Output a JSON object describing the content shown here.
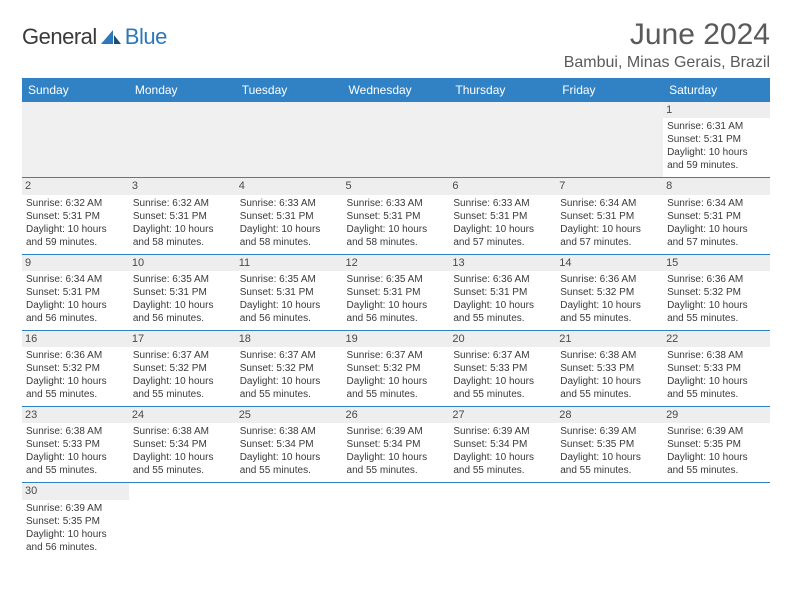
{
  "logo": {
    "general": "General",
    "blue": "Blue"
  },
  "title": "June 2024",
  "location": "Bambui, Minas Gerais, Brazil",
  "colors": {
    "header_bg": "#3082c5",
    "header_text": "#ffffff",
    "daynum_bg": "#eeeeee",
    "row_border": "#3082c5",
    "text": "#3a3a3a",
    "logo_gray": "#3a3a3a",
    "logo_blue": "#2e77b8"
  },
  "day_headers": [
    "Sunday",
    "Monday",
    "Tuesday",
    "Wednesday",
    "Thursday",
    "Friday",
    "Saturday"
  ],
  "weeks": [
    [
      null,
      null,
      null,
      null,
      null,
      null,
      {
        "n": "1",
        "sr": "6:31 AM",
        "ss": "5:31 PM",
        "dl": "10 hours and 59 minutes."
      }
    ],
    [
      {
        "n": "2",
        "sr": "6:32 AM",
        "ss": "5:31 PM",
        "dl": "10 hours and 59 minutes."
      },
      {
        "n": "3",
        "sr": "6:32 AM",
        "ss": "5:31 PM",
        "dl": "10 hours and 58 minutes."
      },
      {
        "n": "4",
        "sr": "6:33 AM",
        "ss": "5:31 PM",
        "dl": "10 hours and 58 minutes."
      },
      {
        "n": "5",
        "sr": "6:33 AM",
        "ss": "5:31 PM",
        "dl": "10 hours and 58 minutes."
      },
      {
        "n": "6",
        "sr": "6:33 AM",
        "ss": "5:31 PM",
        "dl": "10 hours and 57 minutes."
      },
      {
        "n": "7",
        "sr": "6:34 AM",
        "ss": "5:31 PM",
        "dl": "10 hours and 57 minutes."
      },
      {
        "n": "8",
        "sr": "6:34 AM",
        "ss": "5:31 PM",
        "dl": "10 hours and 57 minutes."
      }
    ],
    [
      {
        "n": "9",
        "sr": "6:34 AM",
        "ss": "5:31 PM",
        "dl": "10 hours and 56 minutes."
      },
      {
        "n": "10",
        "sr": "6:35 AM",
        "ss": "5:31 PM",
        "dl": "10 hours and 56 minutes."
      },
      {
        "n": "11",
        "sr": "6:35 AM",
        "ss": "5:31 PM",
        "dl": "10 hours and 56 minutes."
      },
      {
        "n": "12",
        "sr": "6:35 AM",
        "ss": "5:31 PM",
        "dl": "10 hours and 56 minutes."
      },
      {
        "n": "13",
        "sr": "6:36 AM",
        "ss": "5:31 PM",
        "dl": "10 hours and 55 minutes."
      },
      {
        "n": "14",
        "sr": "6:36 AM",
        "ss": "5:32 PM",
        "dl": "10 hours and 55 minutes."
      },
      {
        "n": "15",
        "sr": "6:36 AM",
        "ss": "5:32 PM",
        "dl": "10 hours and 55 minutes."
      }
    ],
    [
      {
        "n": "16",
        "sr": "6:36 AM",
        "ss": "5:32 PM",
        "dl": "10 hours and 55 minutes."
      },
      {
        "n": "17",
        "sr": "6:37 AM",
        "ss": "5:32 PM",
        "dl": "10 hours and 55 minutes."
      },
      {
        "n": "18",
        "sr": "6:37 AM",
        "ss": "5:32 PM",
        "dl": "10 hours and 55 minutes."
      },
      {
        "n": "19",
        "sr": "6:37 AM",
        "ss": "5:32 PM",
        "dl": "10 hours and 55 minutes."
      },
      {
        "n": "20",
        "sr": "6:37 AM",
        "ss": "5:33 PM",
        "dl": "10 hours and 55 minutes."
      },
      {
        "n": "21",
        "sr": "6:38 AM",
        "ss": "5:33 PM",
        "dl": "10 hours and 55 minutes."
      },
      {
        "n": "22",
        "sr": "6:38 AM",
        "ss": "5:33 PM",
        "dl": "10 hours and 55 minutes."
      }
    ],
    [
      {
        "n": "23",
        "sr": "6:38 AM",
        "ss": "5:33 PM",
        "dl": "10 hours and 55 minutes."
      },
      {
        "n": "24",
        "sr": "6:38 AM",
        "ss": "5:34 PM",
        "dl": "10 hours and 55 minutes."
      },
      {
        "n": "25",
        "sr": "6:38 AM",
        "ss": "5:34 PM",
        "dl": "10 hours and 55 minutes."
      },
      {
        "n": "26",
        "sr": "6:39 AM",
        "ss": "5:34 PM",
        "dl": "10 hours and 55 minutes."
      },
      {
        "n": "27",
        "sr": "6:39 AM",
        "ss": "5:34 PM",
        "dl": "10 hours and 55 minutes."
      },
      {
        "n": "28",
        "sr": "6:39 AM",
        "ss": "5:35 PM",
        "dl": "10 hours and 55 minutes."
      },
      {
        "n": "29",
        "sr": "6:39 AM",
        "ss": "5:35 PM",
        "dl": "10 hours and 55 minutes."
      }
    ],
    [
      {
        "n": "30",
        "sr": "6:39 AM",
        "ss": "5:35 PM",
        "dl": "10 hours and 56 minutes."
      },
      null,
      null,
      null,
      null,
      null,
      null
    ]
  ],
  "labels": {
    "sunrise": "Sunrise:",
    "sunset": "Sunset:",
    "daylight": "Daylight:"
  }
}
